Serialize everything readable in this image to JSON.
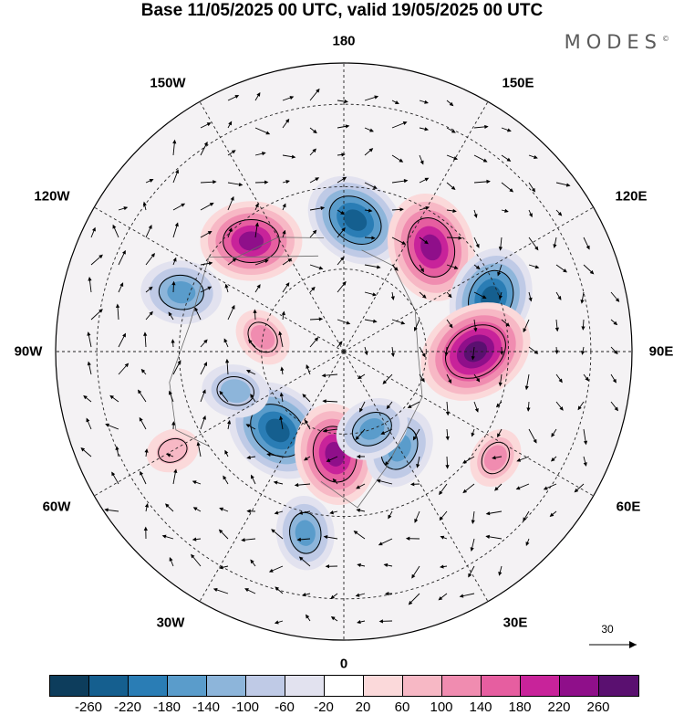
{
  "title": "Base 11/05/2025 00 UTC, valid 19/05/2025 00 UTC",
  "brand": "MODES",
  "brand_mark": "©",
  "longitude_labels": {
    "top": "180",
    "bottom": "0",
    "left": "90W",
    "right": "90E",
    "upper_left_outer": "150W",
    "upper_left_inner": "120W",
    "upper_right_outer": "150E",
    "upper_right_inner": "120E",
    "lower_left_outer": "30W",
    "lower_left_inner": "60W",
    "lower_right_outer": "30E",
    "lower_right_inner": "60E"
  },
  "vector_scale": {
    "label": "30"
  },
  "colorbar": {
    "ticks": [
      "-260",
      "-220",
      "-180",
      "-140",
      "-100",
      "-60",
      "-20",
      "20",
      "60",
      "100",
      "140",
      "180",
      "220",
      "260"
    ],
    "colors": [
      "#0d3d5c",
      "#155f8f",
      "#2a7db5",
      "#5a9ccb",
      "#8db5da",
      "#bfcae6",
      "#e2e2ef",
      "#ffffff",
      "#fbd9da",
      "#f7b8c5",
      "#f08cb0",
      "#e65ea0",
      "#c8239a",
      "#8f0f8a",
      "#5a1070"
    ]
  },
  "anomaly_centers": [
    {
      "lon": -140,
      "lat": 55,
      "value": 200
    },
    {
      "lon": 175,
      "lat": 58,
      "value": -200
    },
    {
      "lon": 140,
      "lat": 57,
      "value": 220
    },
    {
      "lon": 110,
      "lat": 52,
      "value": -200
    },
    {
      "lon": 90,
      "lat": 58,
      "value": 240
    },
    {
      "lon": -110,
      "lat": 48,
      "value": -140
    },
    {
      "lon": -40,
      "lat": 65,
      "value": -220
    },
    {
      "lon": -5,
      "lat": 65,
      "value": 200
    },
    {
      "lon": 30,
      "lat": 63,
      "value": -140
    },
    {
      "lon": 20,
      "lat": 70,
      "value": -120
    },
    {
      "lon": -70,
      "lat": 62,
      "value": -100
    },
    {
      "lon": -100,
      "lat": 70,
      "value": 80
    },
    {
      "lon": -12,
      "lat": 45,
      "value": -120
    },
    {
      "lon": 55,
      "lat": 45,
      "value": 80
    },
    {
      "lon": -60,
      "lat": 42,
      "value": 60
    }
  ]
}
